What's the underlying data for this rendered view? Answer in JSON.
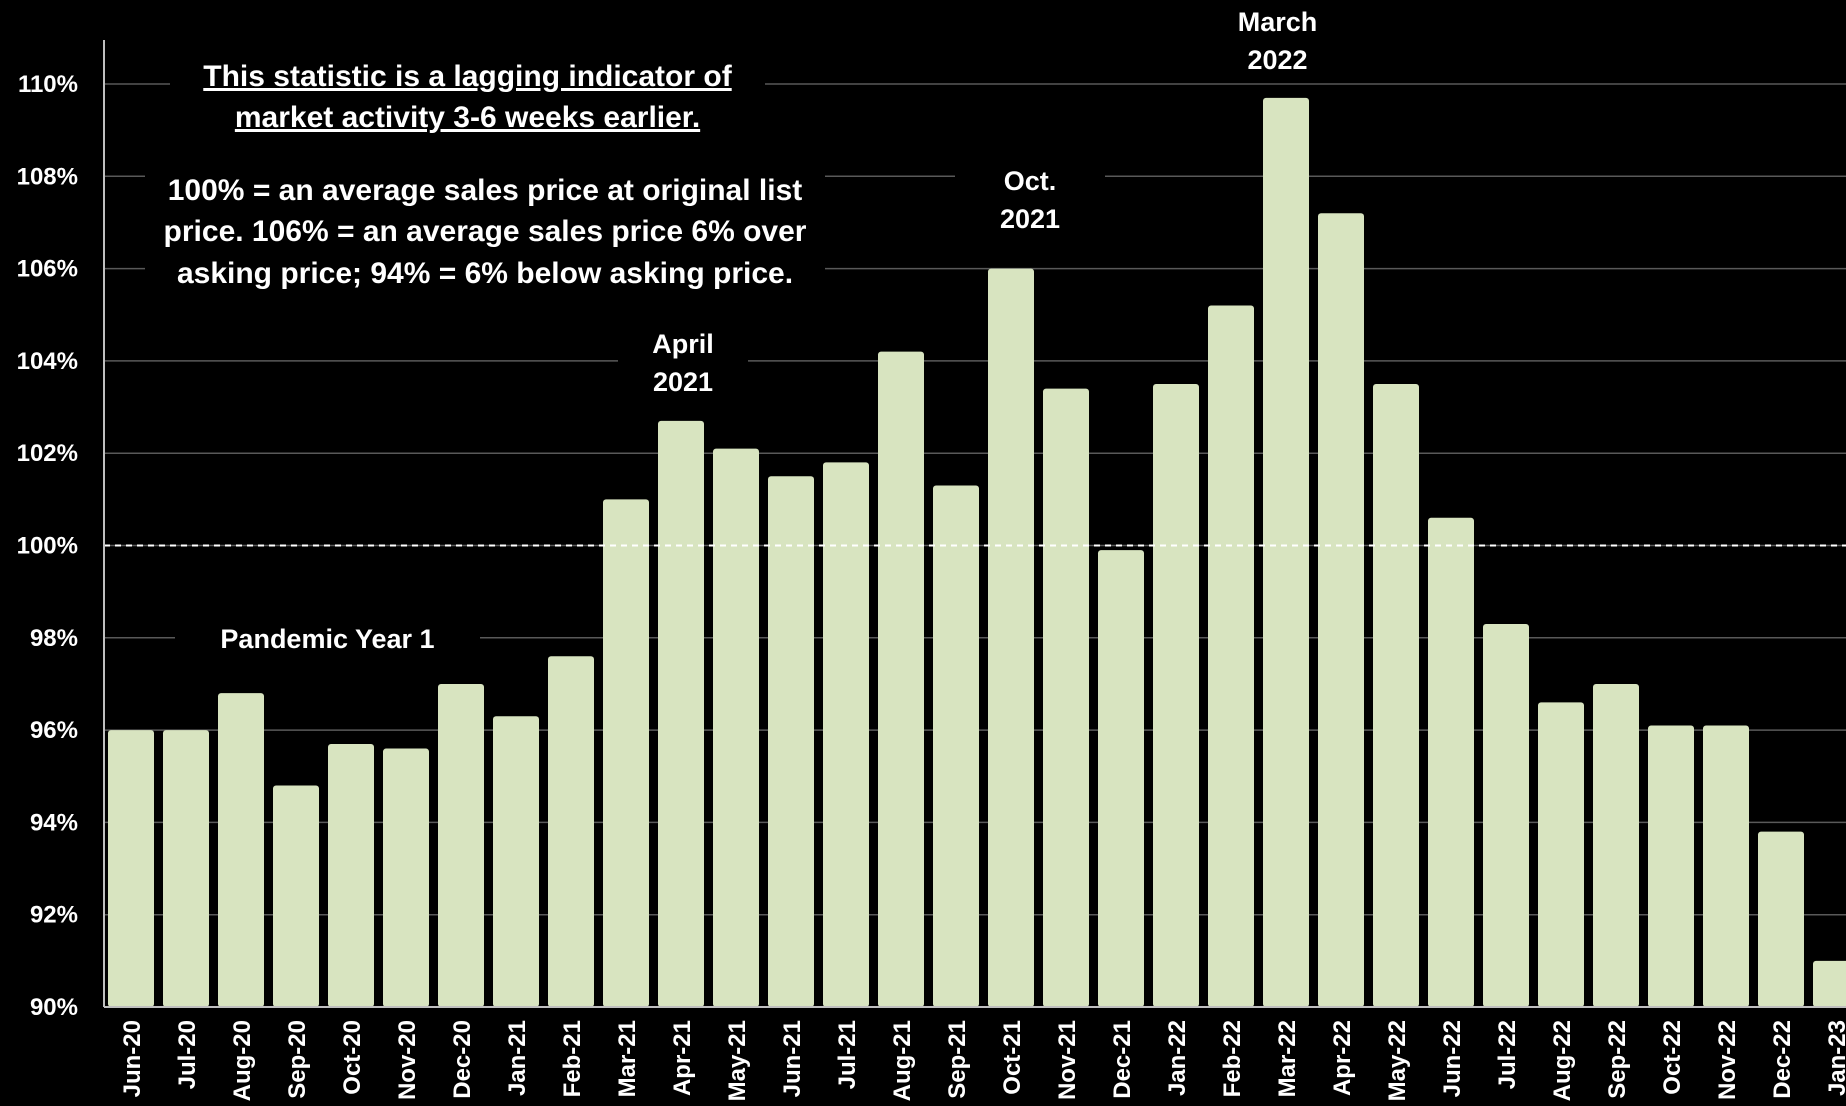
{
  "chart_data": {
    "type": "bar",
    "title": "",
    "xlabel": "",
    "ylabel": "",
    "ylim": [
      90,
      110
    ],
    "yticks": [
      90,
      92,
      94,
      96,
      98,
      100,
      102,
      104,
      106,
      108,
      110
    ],
    "ytick_suffix": "%",
    "reference_line": 100,
    "grid": true,
    "bar_color": "#d8e4c0",
    "background": "#000000",
    "categories": [
      "Jun-20",
      "Jul-20",
      "Aug-20",
      "Sep-20",
      "Oct-20",
      "Nov-20",
      "Dec-20",
      "Jan-21",
      "Feb-21",
      "Mar-21",
      "Apr-21",
      "May-21",
      "Jun-21",
      "Jul-21",
      "Aug-21",
      "Sep-21",
      "Oct-21",
      "Nov-21",
      "Dec-21",
      "Jan-22",
      "Feb-22",
      "Mar-22",
      "Apr-22",
      "May-22",
      "Jun-22",
      "Jul-22",
      "Aug-22",
      "Sep-22",
      "Oct-22",
      "Nov-22",
      "Dec-22",
      "Jan-23"
    ],
    "values": [
      96.0,
      96.0,
      96.8,
      94.8,
      95.7,
      95.6,
      97.0,
      96.3,
      97.6,
      101.0,
      102.7,
      102.1,
      101.5,
      101.8,
      104.2,
      101.3,
      106.0,
      103.4,
      99.9,
      103.5,
      105.2,
      109.7,
      107.2,
      103.5,
      100.6,
      98.3,
      96.6,
      97.0,
      96.1,
      96.1,
      93.8,
      91.0
    ]
  },
  "notes": {
    "lagging": "This statistic is a lagging indicator of market activity 3-6 weeks earlier.",
    "explanation": "100% = an average sales price at original list price. 106% = an average sales price 6% over asking price; 94% = 6% below asking price."
  },
  "annotations": {
    "pandemic": "Pandemic Year 1",
    "april_2021": "April\n2021",
    "oct_2021": "Oct.\n2021",
    "march_2022": "March\n2022"
  }
}
